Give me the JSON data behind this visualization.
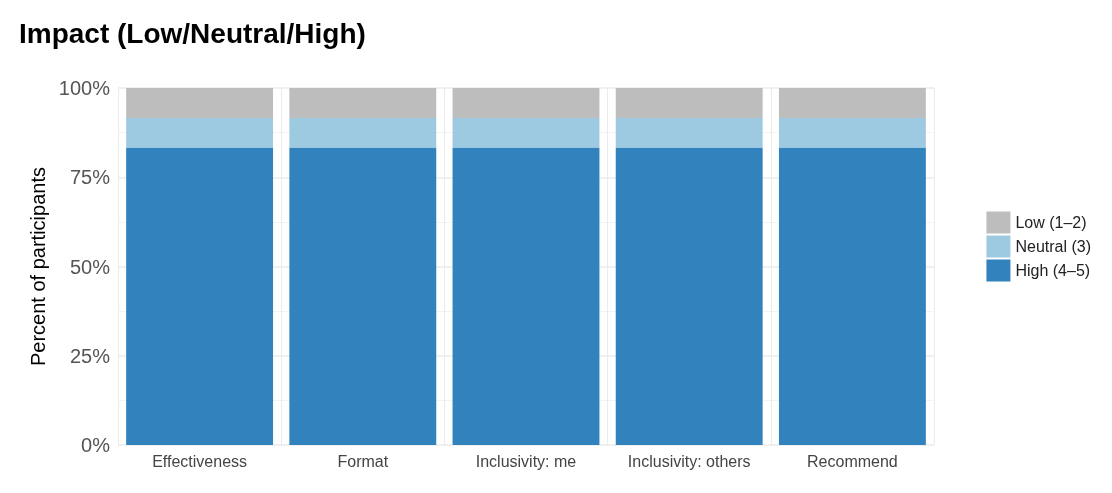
{
  "chart_data": {
    "type": "bar",
    "title": "Impact (Low/Neutral/High)",
    "ylabel": "Percent of participants",
    "categories": [
      "Effectiveness",
      "Format",
      "Inclusivity: me",
      "Inclusivity: others",
      "Recommend"
    ],
    "series": [
      {
        "name": "High (4–5)",
        "color": "#3182bd",
        "values": [
          83.3,
          83.3,
          83.3,
          83.3,
          83.3
        ]
      },
      {
        "name": "Neutral (3)",
        "color": "#9ecae1",
        "values": [
          8.3,
          8.3,
          8.3,
          8.3,
          8.3
        ]
      },
      {
        "name": "Low (1–2)",
        "color": "#bdbdbd",
        "values": [
          8.4,
          8.4,
          8.4,
          8.4,
          8.4
        ]
      }
    ],
    "stacked": true,
    "ylim": [
      0,
      100
    ],
    "yticks": [
      {
        "value": 0,
        "label": "0%"
      },
      {
        "value": 25,
        "label": "25%"
      },
      {
        "value": 50,
        "label": "50%"
      },
      {
        "value": 75,
        "label": "75%"
      },
      {
        "value": 100,
        "label": "100%"
      }
    ],
    "grid": true,
    "legend": "right"
  }
}
